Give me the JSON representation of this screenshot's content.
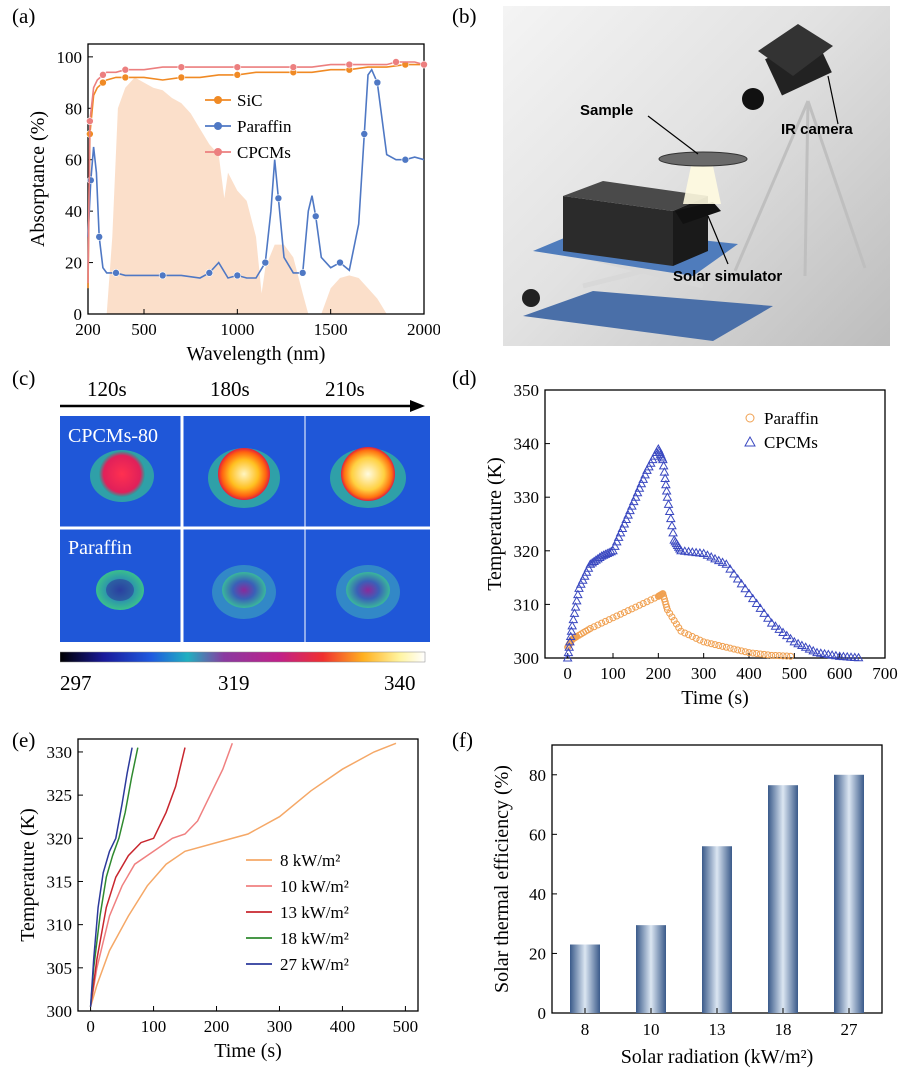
{
  "panel_labels": {
    "a": "(a)",
    "b": "(b)",
    "c": "(c)",
    "d": "(d)",
    "e": "(e)",
    "f": "(f)"
  },
  "panel_b": {
    "sample_label": "Sample",
    "camera_label": "IR camera",
    "simulator_label": "Solar simulator"
  },
  "panel_c": {
    "time_labels": [
      "120s",
      "180s",
      "210s"
    ],
    "row_labels": [
      "CPCMs-80",
      "Paraffin"
    ],
    "scale_unit": "K",
    "scale_ticks": [
      "297",
      "319",
      "340"
    ]
  },
  "chart_data": [
    {
      "id": "a",
      "type": "line",
      "xlabel": "Wavelength (nm)",
      "ylabel": "Absorptance (%)",
      "xlim": [
        200,
        2000
      ],
      "ylim": [
        0,
        105
      ],
      "xticks": [
        "200",
        "500",
        "1000",
        "1500",
        "2000"
      ],
      "yticks": [
        "0",
        "20",
        "40",
        "60",
        "80",
        "100"
      ],
      "legend": "upper-middle",
      "series": [
        {
          "name": "SiC",
          "color": "#f08a24",
          "x": [
            200,
            210,
            230,
            250,
            280,
            300,
            350,
            400,
            500,
            600,
            700,
            800,
            900,
            1000,
            1100,
            1200,
            1300,
            1400,
            1500,
            1600,
            1700,
            1800,
            1900,
            2000
          ],
          "y": [
            10,
            70,
            85,
            88,
            90,
            91,
            92,
            92,
            92,
            91,
            92,
            92,
            93,
            93,
            94,
            94,
            94,
            94,
            95,
            95,
            96,
            96,
            97,
            97
          ]
        },
        {
          "name": "Paraffin",
          "color": "#4f78c4",
          "x": [
            200,
            215,
            230,
            245,
            260,
            280,
            300,
            350,
            400,
            500,
            600,
            700,
            800,
            850,
            900,
            950,
            1000,
            1050,
            1100,
            1150,
            1180,
            1200,
            1220,
            1250,
            1300,
            1350,
            1380,
            1400,
            1420,
            1450,
            1500,
            1550,
            1600,
            1650,
            1680,
            1700,
            1720,
            1750,
            1800,
            1850,
            1900,
            1950,
            2000
          ],
          "y": [
            30,
            52,
            65,
            55,
            30,
            18,
            16,
            16,
            15,
            15,
            15,
            15,
            14,
            16,
            20,
            14,
            15,
            14,
            14,
            20,
            40,
            60,
            45,
            22,
            16,
            16,
            40,
            46,
            38,
            22,
            18,
            20,
            17,
            35,
            70,
            93,
            95,
            90,
            62,
            60,
            60,
            61,
            60
          ]
        },
        {
          "name": "CPCMs",
          "color": "#ec7f7f",
          "x": [
            200,
            210,
            230,
            250,
            280,
            300,
            350,
            400,
            500,
            600,
            700,
            800,
            900,
            1000,
            1100,
            1200,
            1300,
            1400,
            1500,
            1600,
            1700,
            1800,
            1850,
            1900,
            1950,
            2000
          ],
          "y": [
            12,
            75,
            88,
            91,
            93,
            94,
            94,
            95,
            95,
            96,
            96,
            96,
            96,
            96,
            96,
            96,
            96,
            96,
            97,
            97,
            97,
            97,
            98,
            98,
            98,
            97
          ]
        }
      ]
    },
    {
      "id": "d",
      "type": "scatter",
      "xlabel": "Time (s)",
      "ylabel": "Temperature (K)",
      "xlim": [
        -50,
        700
      ],
      "ylim": [
        300,
        350
      ],
      "xticks": [
        "0",
        "100",
        "200",
        "300",
        "400",
        "500",
        "600",
        "700"
      ],
      "yticks": [
        "300",
        "310",
        "320",
        "330",
        "340",
        "350"
      ],
      "legend": "top-right",
      "series": [
        {
          "name": "Paraffin",
          "marker": "circle",
          "color": "#f0a050",
          "x": [
            0,
            10,
            20,
            50,
            100,
            150,
            200,
            210,
            220,
            250,
            300,
            350,
            400,
            450,
            500
          ],
          "y": [
            302,
            303.5,
            304,
            305.5,
            307.5,
            309.5,
            311.5,
            312,
            309,
            305,
            303,
            302,
            301,
            300.5,
            300.3
          ]
        },
        {
          "name": "CPCMs",
          "marker": "triangle",
          "color": "#3a48c0",
          "x": [
            0,
            10,
            25,
            50,
            75,
            100,
            125,
            150,
            175,
            200,
            210,
            220,
            235,
            250,
            300,
            350,
            400,
            450,
            500,
            550,
            600,
            650
          ],
          "y": [
            300,
            306,
            313,
            317.5,
            319,
            320,
            325,
            330,
            335,
            339,
            337,
            330,
            322,
            320,
            319.5,
            317.5,
            312,
            306.5,
            303,
            301,
            300.3,
            300
          ]
        }
      ]
    },
    {
      "id": "e",
      "type": "line",
      "xlabel": "Time (s)",
      "ylabel": "Temperature (K)",
      "xlim": [
        -20,
        520
      ],
      "ylim": [
        300,
        331.5
      ],
      "xticks": [
        "0",
        "100",
        "200",
        "300",
        "400",
        "500"
      ],
      "yticks": [
        "300",
        "305",
        "310",
        "315",
        "320",
        "325",
        "330"
      ],
      "legend": "right",
      "series": [
        {
          "name": "8 kW/m²",
          "color": "#f5a867",
          "x": [
            0,
            10,
            30,
            60,
            90,
            120,
            150,
            200,
            250,
            300,
            350,
            400,
            450,
            485
          ],
          "y": [
            300.5,
            303,
            307,
            311,
            314.5,
            317,
            318.5,
            319.5,
            320.5,
            322.5,
            325.5,
            328,
            330,
            331
          ]
        },
        {
          "name": "10 kW/m²",
          "color": "#f08080",
          "x": [
            0,
            10,
            30,
            50,
            70,
            100,
            130,
            150,
            170,
            190,
            210,
            225
          ],
          "y": [
            300.5,
            305,
            311,
            314.5,
            317,
            318.5,
            320,
            320.5,
            322,
            325,
            328,
            331
          ]
        },
        {
          "name": "13 kW/m²",
          "color": "#c8262e",
          "x": [
            0,
            10,
            25,
            40,
            60,
            80,
            100,
            120,
            135,
            150
          ],
          "y": [
            300.5,
            306,
            312,
            315.5,
            318,
            319.5,
            320,
            323,
            326,
            330.5
          ]
        },
        {
          "name": "18 kW/m²",
          "color": "#2f8a2f",
          "x": [
            0,
            5,
            15,
            25,
            35,
            45,
            55,
            65,
            75
          ],
          "y": [
            300.5,
            305,
            311,
            315.5,
            318,
            320,
            323,
            327,
            330.5
          ]
        },
        {
          "name": "27 kW/m²",
          "color": "#2c3a9c",
          "x": [
            0,
            5,
            12,
            20,
            30,
            40,
            50,
            58,
            66
          ],
          "y": [
            300.5,
            306,
            312,
            316,
            318.5,
            320,
            324,
            327.5,
            330.5
          ]
        }
      ]
    },
    {
      "id": "f",
      "type": "bar",
      "xlabel": "Solar radiation (kW/m²)",
      "ylabel": "Solar thermal efficiency (%)",
      "categories": [
        "8",
        "10",
        "13",
        "18",
        "27"
      ],
      "values": [
        23,
        29.5,
        56,
        76.5,
        80
      ],
      "ylim": [
        0,
        90
      ],
      "yticks": [
        "0",
        "20",
        "40",
        "60",
        "80"
      ]
    }
  ]
}
